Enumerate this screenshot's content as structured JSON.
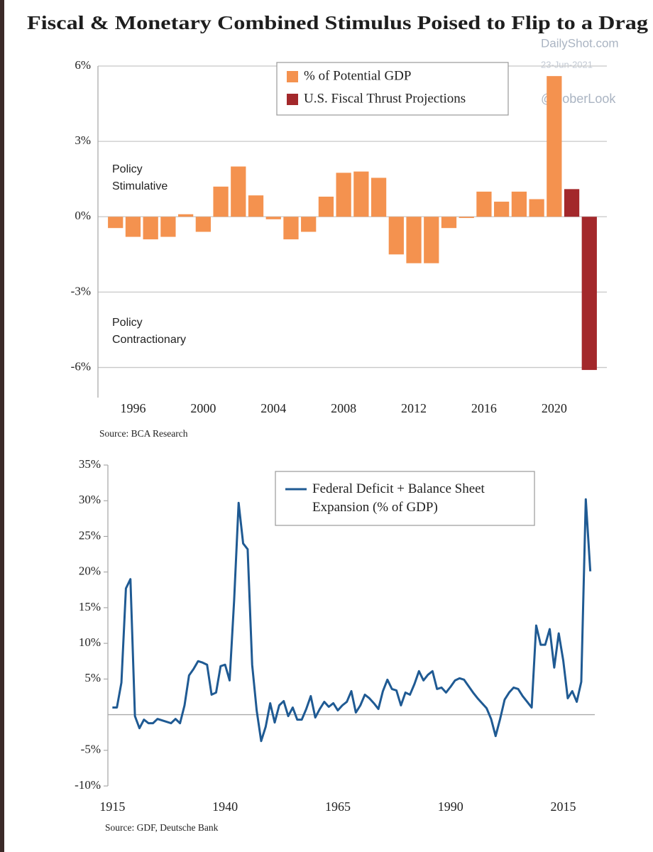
{
  "title": "Fiscal & Monetary Combined Stimulus Poised to Flip to a Drag",
  "watermark": [
    "DailyShot.com",
    "23-Jun-2021",
    "@SoberLook"
  ],
  "chart_data": [
    {
      "type": "bar",
      "x": [
        1995,
        1996,
        1997,
        1998,
        1999,
        2000,
        2001,
        2002,
        2003,
        2004,
        2005,
        2006,
        2007,
        2008,
        2009,
        2010,
        2011,
        2012,
        2013,
        2014,
        2015,
        2016,
        2017,
        2018,
        2019,
        2020,
        2021,
        2022
      ],
      "series": [
        {
          "name": "% of Potential GDP",
          "color": "#f4924f",
          "values": [
            -0.45,
            -0.8,
            -0.9,
            -0.8,
            0.1,
            -0.6,
            1.2,
            2.0,
            0.85,
            -0.1,
            -0.9,
            -0.6,
            0.8,
            1.75,
            1.8,
            1.55,
            -1.5,
            -1.85,
            -1.85,
            -0.45,
            -0.05,
            1.0,
            0.6,
            1.0,
            0.7,
            5.6,
            null,
            null
          ]
        },
        {
          "name": "U.S. Fiscal Thrust Projections",
          "color": "#a3282b",
          "values": [
            null,
            null,
            null,
            null,
            null,
            null,
            null,
            null,
            null,
            null,
            null,
            null,
            null,
            null,
            null,
            null,
            null,
            null,
            null,
            null,
            null,
            null,
            null,
            null,
            null,
            null,
            1.1,
            -6.1
          ]
        }
      ],
      "xlim": [
        1994,
        2023
      ],
      "xticks": [
        1996,
        2000,
        2004,
        2008,
        2012,
        2016,
        2020
      ],
      "ylim": [
        -7.2,
        6
      ],
      "yticks": [
        {
          "value": 6,
          "label": "6%"
        },
        {
          "value": 3,
          "label": "3%"
        },
        {
          "value": 0,
          "label": "0%"
        },
        {
          "value": -3,
          "label": "-3%"
        },
        {
          "value": -6,
          "label": "-6%"
        }
      ],
      "grid": true,
      "annotations": [
        "Policy Stimulative",
        "Policy Contractionary"
      ],
      "source": "Source:  BCA Research"
    },
    {
      "type": "line",
      "x": [
        1915,
        1916,
        1917,
        1918,
        1919,
        1920,
        1921,
        1922,
        1923,
        1924,
        1925,
        1926,
        1927,
        1928,
        1929,
        1930,
        1931,
        1932,
        1933,
        1934,
        1935,
        1936,
        1937,
        1938,
        1939,
        1940,
        1941,
        1942,
        1943,
        1944,
        1945,
        1946,
        1947,
        1948,
        1949,
        1950,
        1951,
        1952,
        1953,
        1954,
        1955,
        1956,
        1957,
        1958,
        1959,
        1960,
        1961,
        1962,
        1963,
        1964,
        1965,
        1966,
        1967,
        1968,
        1969,
        1970,
        1971,
        1972,
        1973,
        1974,
        1975,
        1976,
        1977,
        1978,
        1979,
        1980,
        1981,
        1982,
        1983,
        1984,
        1985,
        1986,
        1987,
        1988,
        1989,
        1990,
        1991,
        1992,
        1993,
        1994,
        1995,
        1996,
        1997,
        1998,
        1999,
        2000,
        2001,
        2002,
        2003,
        2004,
        2005,
        2006,
        2007,
        2008,
        2009,
        2010,
        2011,
        2012,
        2013,
        2014,
        2015,
        2016,
        2017,
        2018,
        2019,
        2020,
        2021
      ],
      "series": [
        {
          "name": "Federal Deficit + Balance Sheet Expansion (% of GDP)",
          "color": "#1f5a93",
          "values": [
            1.0,
            1.0,
            4.5,
            17.7,
            19.0,
            -0.2,
            -1.9,
            -0.7,
            -1.2,
            -1.2,
            -0.6,
            -0.8,
            -1.0,
            -1.2,
            -0.6,
            -1.2,
            1.3,
            5.5,
            6.4,
            7.5,
            7.3,
            7.0,
            2.8,
            3.1,
            6.8,
            7.0,
            4.8,
            16.0,
            29.7,
            24.0,
            23.2,
            7.0,
            0.6,
            -3.7,
            -1.7,
            1.6,
            -1.1,
            1.3,
            1.9,
            -0.2,
            1.0,
            -0.7,
            -0.7,
            0.8,
            2.6,
            -0.4,
            0.8,
            1.8,
            1.1,
            1.6,
            0.6,
            1.3,
            1.8,
            3.3,
            0.3,
            1.3,
            2.8,
            2.3,
            1.6,
            0.8,
            3.3,
            4.9,
            3.6,
            3.4,
            1.3,
            3.1,
            2.8,
            4.3,
            6.1,
            4.8,
            5.6,
            6.1,
            3.6,
            3.8,
            3.1,
            3.9,
            4.8,
            5.1,
            4.9,
            4.0,
            3.1,
            2.3,
            1.6,
            0.9,
            -0.6,
            -3.0,
            -0.6,
            2.1,
            3.1,
            3.8,
            3.6,
            2.6,
            1.8,
            1.0,
            12.5,
            9.8,
            9.8,
            12.0,
            6.6,
            11.4,
            7.6,
            2.3,
            3.3,
            1.8,
            4.6,
            30.2,
            20.1
          ]
        }
      ],
      "xlim": [
        1914,
        2022
      ],
      "xticks": [
        1915,
        1940,
        1965,
        1990,
        2015
      ],
      "ylim": [
        -10,
        35
      ],
      "yticks": [
        {
          "value": 35,
          "label": "35%"
        },
        {
          "value": 30,
          "label": "30%"
        },
        {
          "value": 25,
          "label": "25%"
        },
        {
          "value": 20,
          "label": "20%"
        },
        {
          "value": 15,
          "label": "15%"
        },
        {
          "value": 10,
          "label": "10%"
        },
        {
          "value": 5,
          "label": "5%"
        },
        {
          "value": -5,
          "label": "-5%"
        },
        {
          "value": -10,
          "label": "-10%"
        }
      ],
      "zero_line": true,
      "source": "Source:  GDF, Deutsche Bank"
    }
  ]
}
